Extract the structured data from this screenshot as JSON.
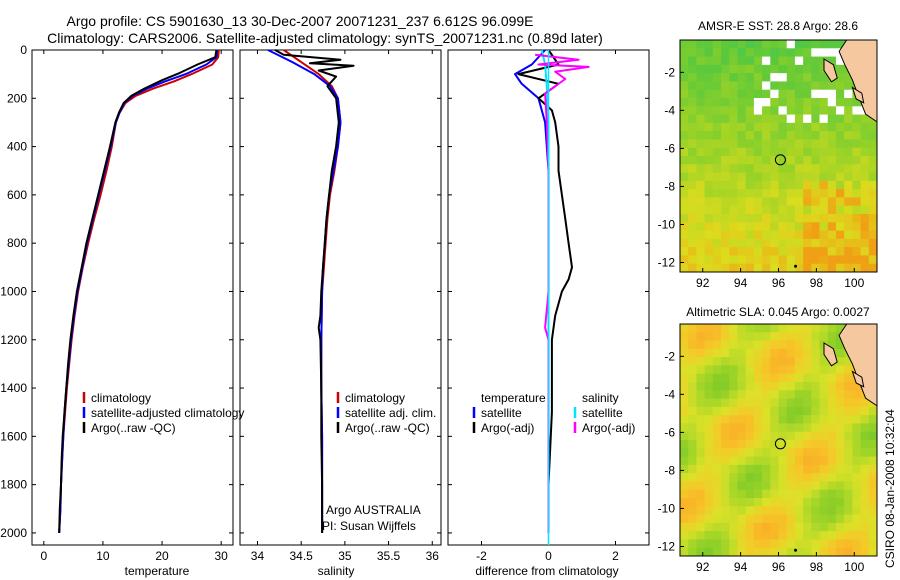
{
  "header": {
    "title_line1": "Argo profile: CS 5901630_13 30-Dec-2007 20071231_237 6.612S 96.099E",
    "title_line2": "Climatology: CARS2006. Satellite-adjusted climatology: synTS_20071231.nc (0.89d later)"
  },
  "side_label": "CSIRO 08-Jan-2008 10:32:04",
  "colors": {
    "climatology": "#cc0000",
    "satellite": "#0000ff",
    "argo": "#000000",
    "magenta": "#ff00ff",
    "cyan": "#00e5ff"
  },
  "chart_data": [
    {
      "type": "line",
      "name": "temperature-profile",
      "xlabel": "temperature",
      "xlim": [
        -2,
        32
      ],
      "ylim": [
        0,
        2050
      ],
      "xticks": [
        "0",
        "10",
        "20",
        "30"
      ],
      "xtick_values": [
        0,
        10,
        20,
        30
      ],
      "yticks": [
        "0",
        "200",
        "400",
        "600",
        "800",
        "1000",
        "1200",
        "1400",
        "1600",
        "1800",
        "2000"
      ],
      "ytick_values": [
        0,
        200,
        400,
        600,
        800,
        1000,
        1200,
        1400,
        1600,
        1800,
        2000
      ],
      "legend": [
        "climatology",
        "satellite-adjusted climatology",
        "Argo(..raw -QC)"
      ],
      "series": [
        {
          "name": "climatology",
          "color": "#cc0000",
          "points": [
            [
              29.6,
              0
            ],
            [
              29.5,
              30
            ],
            [
              28.5,
              60
            ],
            [
              25,
              100
            ],
            [
              22,
              130
            ],
            [
              18.5,
              160
            ],
            [
              15.5,
              190
            ],
            [
              13.8,
              220
            ],
            [
              12.8,
              260
            ],
            [
              12.2,
              300
            ],
            [
              11.5,
              400
            ],
            [
              10.6,
              500
            ],
            [
              9.6,
              600
            ],
            [
              8.5,
              700
            ],
            [
              7.5,
              800
            ],
            [
              6.6,
              900
            ],
            [
              5.8,
              1000
            ],
            [
              5.2,
              1100
            ],
            [
              4.7,
              1200
            ],
            [
              4.3,
              1300
            ],
            [
              3.9,
              1400
            ],
            [
              3.6,
              1500
            ],
            [
              3.3,
              1600
            ],
            [
              3.1,
              1700
            ],
            [
              2.9,
              1800
            ],
            [
              2.8,
              1900
            ],
            [
              2.6,
              2000
            ]
          ]
        },
        {
          "name": "satellite-adjusted climatology",
          "color": "#0000ff",
          "points": [
            [
              29.3,
              0
            ],
            [
              29.2,
              30
            ],
            [
              27.5,
              60
            ],
            [
              24,
              100
            ],
            [
              20.5,
              130
            ],
            [
              17.5,
              160
            ],
            [
              15,
              190
            ],
            [
              13.6,
              220
            ],
            [
              12.8,
              260
            ],
            [
              12.2,
              300
            ],
            [
              11.3,
              400
            ],
            [
              10.3,
              500
            ],
            [
              9.3,
              600
            ],
            [
              8.3,
              700
            ],
            [
              7.3,
              800
            ],
            [
              6.5,
              900
            ],
            [
              5.7,
              1000
            ],
            [
              5.1,
              1100
            ],
            [
              4.6,
              1200
            ],
            [
              4.2,
              1300
            ],
            [
              3.8,
              1400
            ],
            [
              3.5,
              1500
            ],
            [
              3.3,
              1600
            ],
            [
              3.1,
              1700
            ],
            [
              2.9,
              1800
            ],
            [
              2.8,
              1900
            ],
            [
              2.6,
              2000
            ]
          ]
        },
        {
          "name": "Argo(..raw -QC)",
          "color": "#000000",
          "points": [
            [
              29.2,
              0
            ],
            [
              29,
              30
            ],
            [
              26,
              60
            ],
            [
              23,
              95
            ],
            [
              20,
              125
            ],
            [
              17,
              160
            ],
            [
              14.8,
              190
            ],
            [
              13.5,
              220
            ],
            [
              12.7,
              260
            ],
            [
              12.1,
              300
            ],
            [
              11.2,
              400
            ],
            [
              10.2,
              500
            ],
            [
              9.2,
              600
            ],
            [
              8.2,
              700
            ],
            [
              7.2,
              800
            ],
            [
              6.4,
              900
            ],
            [
              5.6,
              1000
            ],
            [
              5.0,
              1100
            ],
            [
              4.5,
              1200
            ],
            [
              4.1,
              1300
            ],
            [
              3.8,
              1400
            ],
            [
              3.5,
              1500
            ],
            [
              3.2,
              1600
            ],
            [
              3.0,
              1700
            ],
            [
              2.9,
              1800
            ],
            [
              2.7,
              1900
            ],
            [
              2.6,
              2000
            ]
          ]
        }
      ]
    },
    {
      "type": "line",
      "name": "salinity-profile",
      "xlabel": "salinity",
      "xlim": [
        33.8,
        36.1
      ],
      "ylim": [
        0,
        2050
      ],
      "xticks": [
        "34",
        "34.5",
        "35",
        "35.5",
        "36"
      ],
      "xtick_values": [
        34,
        34.5,
        35,
        35.5,
        36
      ],
      "legend": [
        "climatology",
        "satellite adj. clim.",
        "Argo(..raw -QC)"
      ],
      "annotation_line1": "Argo AUSTRALIA",
      "annotation_line2": "PI: Susan Wijffels",
      "series": [
        {
          "name": "climatology",
          "color": "#cc0000",
          "points": [
            [
              34.3,
              0
            ],
            [
              34.5,
              50
            ],
            [
              34.7,
              100
            ],
            [
              34.85,
              150
            ],
            [
              34.92,
              200
            ],
            [
              34.95,
              300
            ],
            [
              34.92,
              400
            ],
            [
              34.88,
              500
            ],
            [
              34.83,
              600
            ],
            [
              34.8,
              700
            ],
            [
              34.78,
              800
            ],
            [
              34.76,
              900
            ],
            [
              34.74,
              1000
            ],
            [
              34.73,
              1200
            ],
            [
              34.73,
              1400
            ],
            [
              34.74,
              1600
            ],
            [
              34.74,
              1800
            ],
            [
              34.74,
              2000
            ]
          ]
        },
        {
          "name": "satellite adj. clim.",
          "color": "#0000ff",
          "points": [
            [
              34.12,
              0
            ],
            [
              34.4,
              50
            ],
            [
              34.65,
              100
            ],
            [
              34.83,
              150
            ],
            [
              34.92,
              200
            ],
            [
              34.95,
              300
            ],
            [
              34.92,
              400
            ],
            [
              34.87,
              500
            ],
            [
              34.82,
              600
            ],
            [
              34.79,
              700
            ],
            [
              34.77,
              800
            ],
            [
              34.75,
              900
            ],
            [
              34.74,
              1000
            ],
            [
              34.73,
              1200
            ],
            [
              34.73,
              1400
            ],
            [
              34.74,
              1600
            ],
            [
              34.74,
              1800
            ],
            [
              34.74,
              2000
            ]
          ]
        },
        {
          "name": "Argo(..raw -QC)",
          "color": "#000000",
          "points": [
            [
              34.2,
              0
            ],
            [
              34.3,
              20
            ],
            [
              34.95,
              40
            ],
            [
              34.6,
              55
            ],
            [
              35.1,
              65
            ],
            [
              34.7,
              85
            ],
            [
              34.9,
              110
            ],
            [
              34.8,
              150
            ],
            [
              34.9,
              200
            ],
            [
              34.93,
              300
            ],
            [
              34.9,
              400
            ],
            [
              34.85,
              500
            ],
            [
              34.82,
              600
            ],
            [
              34.79,
              700
            ],
            [
              34.77,
              800
            ],
            [
              34.75,
              900
            ],
            [
              34.73,
              1000
            ],
            [
              34.72,
              1100
            ],
            [
              34.7,
              1150
            ],
            [
              34.72,
              1200
            ],
            [
              34.73,
              1400
            ],
            [
              34.73,
              1600
            ],
            [
              34.74,
              1800
            ],
            [
              34.74,
              2000
            ]
          ]
        }
      ]
    },
    {
      "type": "line",
      "name": "difference-profile",
      "xlabel": "difference from climatology",
      "xlim": [
        -3,
        3
      ],
      "ylim": [
        0,
        2050
      ],
      "xticks": [
        "-2",
        "0",
        "2"
      ],
      "xtick_values": [
        -2,
        0,
        2
      ],
      "legend_left": [
        "temperature",
        "satellite",
        "Argo(-adj)"
      ],
      "legend_right": [
        "salinity",
        "satellite",
        "Argo(-adj)"
      ],
      "series": [
        {
          "name": "temperature satellite",
          "color": "#0000ff",
          "points": [
            [
              -0.1,
              0
            ],
            [
              -0.5,
              60
            ],
            [
              -1.0,
              100
            ],
            [
              -0.8,
              140
            ],
            [
              -0.3,
              200
            ],
            [
              -0.1,
              300
            ],
            [
              0,
              500
            ],
            [
              0,
              1000
            ],
            [
              0,
              1500
            ],
            [
              0,
              2000
            ]
          ]
        },
        {
          "name": "temperature Argo(-adj)",
          "color": "#000000",
          "points": [
            [
              0,
              0
            ],
            [
              0.3,
              60
            ],
            [
              -0.9,
              100
            ],
            [
              0.3,
              140
            ],
            [
              -0.3,
              200
            ],
            [
              0.1,
              250
            ],
            [
              0.2,
              300
            ],
            [
              0.3,
              400
            ],
            [
              0.3,
              500
            ],
            [
              0.4,
              600
            ],
            [
              0.5,
              700
            ],
            [
              0.6,
              800
            ],
            [
              0.7,
              900
            ],
            [
              0.6,
              950
            ],
            [
              0.4,
              1000
            ],
            [
              0.2,
              1100
            ],
            [
              0.1,
              1200
            ],
            [
              0.1,
              1500
            ],
            [
              0,
              1800
            ],
            [
              0,
              2000
            ]
          ]
        },
        {
          "name": "salinity satellite",
          "color": "#00e5ff",
          "points": [
            [
              -0.2,
              0
            ],
            [
              -0.1,
              60
            ],
            [
              -0.05,
              150
            ],
            [
              0,
              300
            ],
            [
              0,
              600
            ],
            [
              0,
              1000
            ],
            [
              0,
              1500
            ],
            [
              0,
              2000
            ]
          ]
        },
        {
          "name": "salinity Argo(-adj)",
          "color": "#ff00ff",
          "points": [
            [
              -0.4,
              20
            ],
            [
              0.9,
              40
            ],
            [
              -0.3,
              60
            ],
            [
              1.2,
              70
            ],
            [
              0.2,
              90
            ],
            [
              0.5,
              120
            ],
            [
              -0.1,
              180
            ],
            [
              -0.05,
              300
            ],
            [
              0,
              500
            ],
            [
              0,
              1000
            ],
            [
              -0.1,
              1150
            ],
            [
              0,
              1200
            ],
            [
              0,
              1500
            ],
            [
              0,
              2000
            ]
          ]
        }
      ]
    },
    {
      "type": "heatmap",
      "name": "sst-map",
      "title": "AMSR-E SST: 28.8 Argo: 28.6",
      "xlim": [
        90.8,
        101.2
      ],
      "ylim": [
        -12.5,
        -0.3
      ],
      "xticks": [
        "92",
        "94",
        "96",
        "98",
        "100"
      ],
      "xtick_values": [
        92,
        94,
        96,
        98,
        100
      ],
      "yticks": [
        "-2",
        "-4",
        "-6",
        "-8",
        "-10",
        "-12"
      ],
      "ytick_values": [
        -2,
        -4,
        -6,
        -8,
        -10,
        -12
      ],
      "marker": {
        "lon": 96.1,
        "lat": -6.6
      }
    },
    {
      "type": "heatmap",
      "name": "sla-map",
      "title": "Altimetric SLA: 0.045 Argo: 0.0027",
      "xlim": [
        90.8,
        101.2
      ],
      "ylim": [
        -12.5,
        -0.3
      ],
      "xticks": [
        "92",
        "94",
        "96",
        "98",
        "100"
      ],
      "xtick_values": [
        92,
        94,
        96,
        98,
        100
      ],
      "yticks": [
        "-2",
        "-4",
        "-6",
        "-8",
        "-10",
        "-12"
      ],
      "ytick_values": [
        -2,
        -4,
        -6,
        -8,
        -10,
        -12
      ],
      "marker": {
        "lon": 96.1,
        "lat": -6.6
      }
    }
  ]
}
